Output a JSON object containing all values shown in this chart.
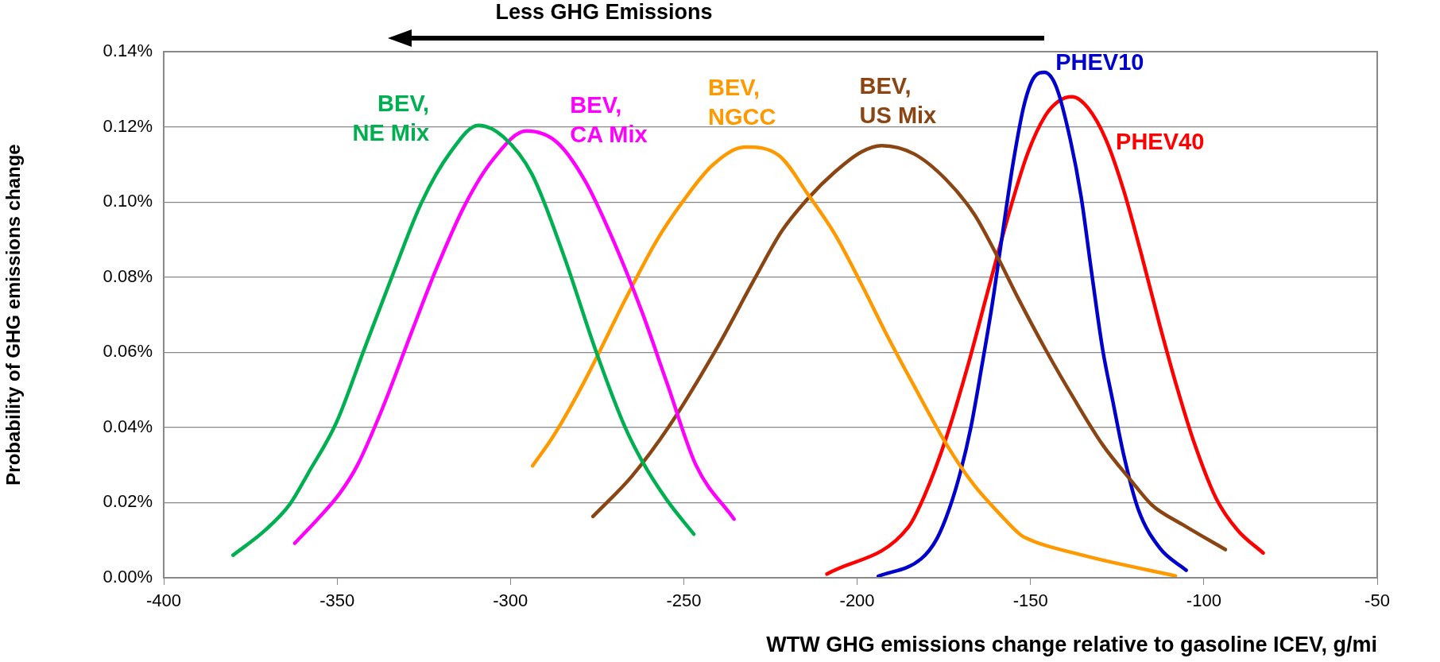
{
  "chart_data": {
    "type": "line",
    "xlabel": "WTW GHG emissions change relative to gasoline ICEV, g/mi",
    "ylabel": "Probability of GHG emissions change",
    "annotations": [
      "Less GHG Emissions"
    ],
    "xlim": [
      -400,
      -50
    ],
    "xticks": [
      -400,
      -350,
      -300,
      -250,
      -200,
      -150,
      -100,
      -50
    ],
    "ylim": [
      0,
      0.14
    ],
    "yticks": [
      {
        "value": 0,
        "label": "0.00%"
      },
      {
        "value": 0.02,
        "label": "0.02%"
      },
      {
        "value": 0.04,
        "label": "0.04%"
      },
      {
        "value": 0.06,
        "label": "0.06%"
      },
      {
        "value": 0.08,
        "label": "0.08%"
      },
      {
        "value": 0.1,
        "label": "0.10%"
      },
      {
        "value": 0.12,
        "label": "0.12%"
      },
      {
        "value": 0.14,
        "label": "0.14%"
      }
    ],
    "grid": "y",
    "legend": false,
    "marker": "none",
    "line_style": "solid",
    "series": [
      {
        "name": "BEV,\nNE Mix",
        "color": "#00b050",
        "x": [
          -380,
          -370.8,
          -363.6,
          -358.4,
          -350.2,
          -342,
          -333.8,
          -325.6,
          -317.4,
          -309.2,
          -302,
          -293.8,
          -284.6,
          -275.3,
          -267.1,
          -262,
          -254.8,
          -247.1
        ],
        "values": [
          0.006,
          0.0126,
          0.0196,
          0.0277,
          0.0413,
          0.0612,
          0.081,
          0.0999,
          0.1131,
          0.1204,
          0.1173,
          0.1074,
          0.0857,
          0.0602,
          0.0404,
          0.031,
          0.0206,
          0.0116
        ]
      },
      {
        "name": "BEV,\nCA Mix",
        "color": "#ff00ff",
        "x": [
          -362.2,
          -355.4,
          -349.2,
          -344.1,
          -336.9,
          -328.7,
          -321.5,
          -313.3,
          -305.1,
          -295.4,
          -286.6,
          -278.4,
          -270.2,
          -262,
          -254.8,
          -246.5,
          -235.5
        ],
        "values": [
          0.0092,
          0.0158,
          0.0225,
          0.03,
          0.0451,
          0.0649,
          0.0819,
          0.0989,
          0.1112,
          0.1189,
          0.1159,
          0.1055,
          0.0895,
          0.0706,
          0.0517,
          0.03,
          0.0156
        ]
      },
      {
        "name": "BEV,\nNGCC",
        "color": "#ff9900",
        "x": [
          -293.6,
          -287.4,
          -278.8,
          -266.5,
          -257.9,
          -250.3,
          -241.7,
          -232.2,
          -222.6,
          -214.1,
          -206.4,
          -198.8,
          -191.2,
          -183.6,
          -174.1,
          -166.4,
          -158.8,
          -153.1,
          -151.8,
          -135.4,
          -108.2
        ],
        "values": [
          0.0298,
          0.038,
          0.052,
          0.0747,
          0.0896,
          0.1001,
          0.1098,
          0.1146,
          0.1124,
          0.1019,
          0.0914,
          0.0782,
          0.0642,
          0.0511,
          0.0353,
          0.0248,
          0.0169,
          0.0116,
          0.0108,
          0.0061,
          0.0005
        ]
      },
      {
        "name": "BEV,\nUS Mix",
        "color": "#8b4513",
        "x": [
          -276.2,
          -265,
          -254.1,
          -240.7,
          -229.3,
          -221.7,
          -214.1,
          -206.4,
          -198.8,
          -192.9,
          -183.6,
          -174.4,
          -166.2,
          -160,
          -153.9,
          -145.7,
          -137.5,
          -129.2,
          -121.1,
          -114.9,
          -106.2,
          -93.8
        ],
        "values": [
          0.0163,
          0.027,
          0.0405,
          0.0607,
          0.08,
          0.0923,
          0.101,
          0.108,
          0.1133,
          0.115,
          0.1128,
          0.106,
          0.0967,
          0.0863,
          0.075,
          0.0608,
          0.0477,
          0.0354,
          0.026,
          0.0193,
          0.0142,
          0.0075
        ]
      },
      {
        "name": "PHEV10",
        "color": "#0000cc",
        "x": [
          -193.9,
          -181.6,
          -177,
          -173.4,
          -170.3,
          -167.2,
          -164.1,
          -161,
          -158,
          -154.9,
          -151.8,
          -148.7,
          -146,
          -142.6,
          -138.5,
          -135.4,
          -132.3,
          -129.2,
          -126.2,
          -123.1,
          -119,
          -112.8,
          -105.1
        ],
        "values": [
          0.0004,
          0.005,
          0.0104,
          0.0184,
          0.0278,
          0.04,
          0.056,
          0.073,
          0.092,
          0.111,
          0.126,
          0.1335,
          0.1345,
          0.1307,
          0.1165,
          0.1014,
          0.0807,
          0.0608,
          0.0467,
          0.0326,
          0.0184,
          0.008,
          0.002
        ]
      },
      {
        "name": "PHEV40",
        "color": "#ff0000",
        "x": [
          -208.7,
          -185.2,
          -180.5,
          -174.4,
          -168.2,
          -162.1,
          -155.9,
          -150.8,
          -145.7,
          -141.6,
          -138,
          -133.4,
          -128.2,
          -123.1,
          -118,
          -112.8,
          -107.7,
          -102.6,
          -96.4,
          -90.3,
          -82.9
        ],
        "values": [
          0.001,
          0.0135,
          0.022,
          0.037,
          0.056,
          0.077,
          0.098,
          0.113,
          0.123,
          0.127,
          0.128,
          0.125,
          0.1165,
          0.103,
          0.086,
          0.0675,
          0.0505,
          0.0354,
          0.021,
          0.0127,
          0.0066
        ]
      }
    ]
  }
}
